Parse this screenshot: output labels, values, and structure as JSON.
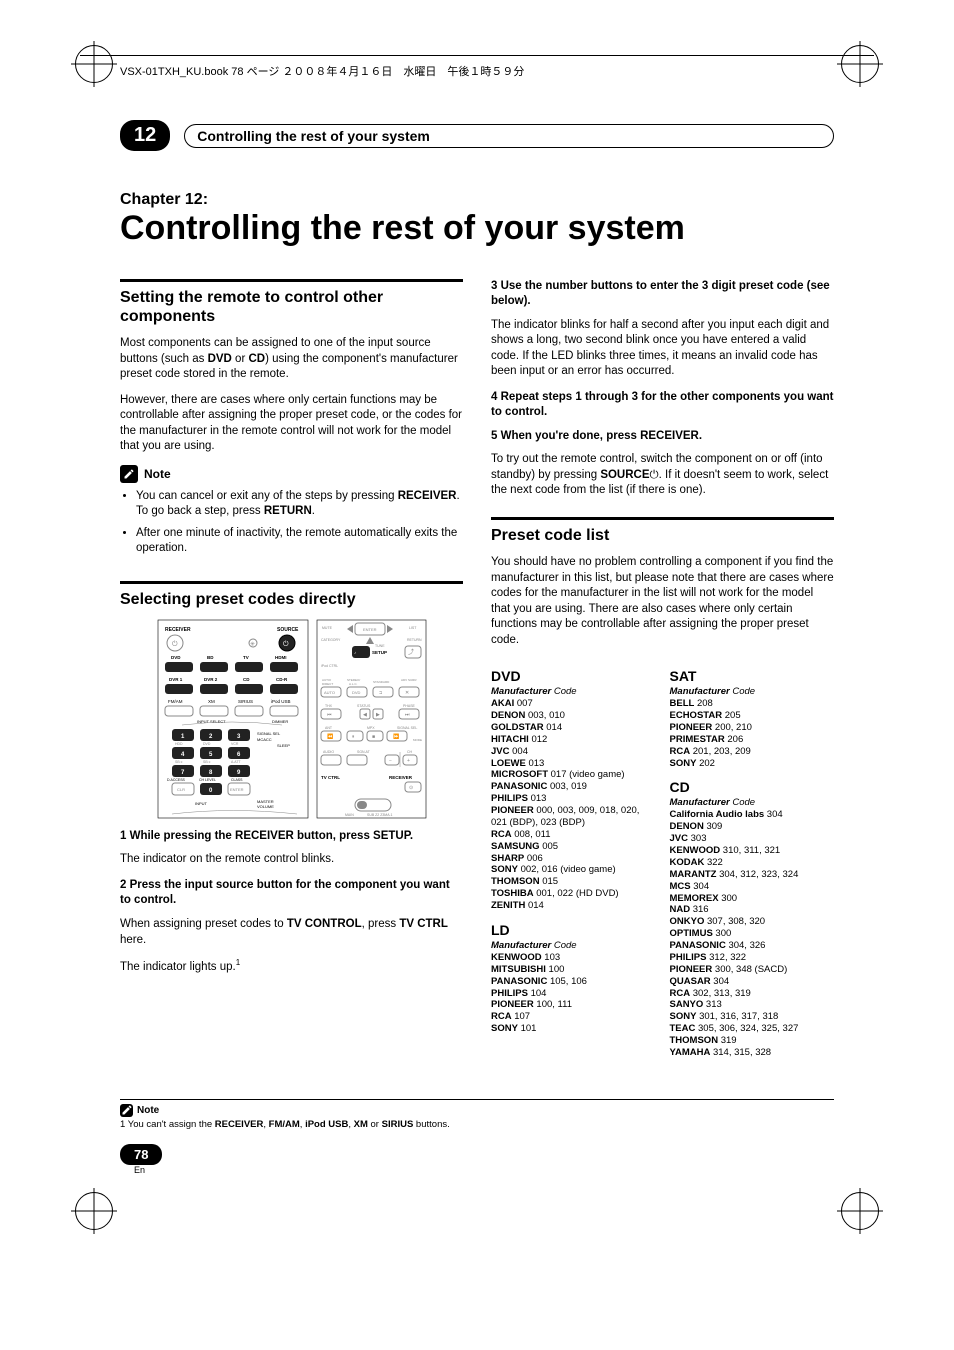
{
  "header": {
    "book_line": "VSX-01TXH_KU.book  78 ページ  ２００８年４月１６日　水曜日　午後１時５９分"
  },
  "chapter": {
    "badge": "12",
    "bar_title": "Controlling the rest of your system",
    "label": "Chapter 12:",
    "title": "Controlling the rest of your system"
  },
  "left": {
    "sec1_title": "Setting the remote to control other components",
    "sec1_p1": "Most components can be assigned to one of the input source buttons (such as DVD or CD) using the component's manufacturer preset code stored in the remote.",
    "sec1_p2": "However, there are cases where only certain functions may be controllable after assigning the proper preset code, or the codes for the manufacturer in the remote control will not work for the model that you are using.",
    "note_label": "Note",
    "note_items": [
      "You can cancel or exit any of the steps by pressing RECEIVER. To go back a step, press RETURN.",
      "After one minute of inactivity, the remote automatically exits the operation."
    ],
    "sec2_title": "Selecting preset codes directly",
    "step1_bold": "1    While pressing the RECEIVER button, press SETUP.",
    "step1_text": "The indicator on the remote control blinks.",
    "step2_bold": "2    Press the input source button for the component you want to control.",
    "step2_text": "When assigning preset codes to TV CONTROL, press TV CTRL here.",
    "step2_text2": "The indicator lights up."
  },
  "right": {
    "step3_bold": "3    Use the number buttons to enter the 3 digit preset code (see below).",
    "step3_text": "The indicator blinks for half a second after you input each digit and shows a long, two second blink once you have entered a valid code. If the LED blinks three times, it means an invalid code has been input or an error has occurred.",
    "step4_bold": "4    Repeat steps 1 through 3 for the other components you want to control.",
    "step5_bold": "5    When you're done, press RECEIVER.",
    "step5_text": "To try out the remote control, switch the component on or off (into standby) by pressing SOURCE⏻. If it doesn't seem to work, select the next code from the list (if there is one).",
    "sec3_title": "Preset code list",
    "sec3_p1": "You should have no problem controlling a component if you find the manufacturer in this list, but please note that there are cases where codes for the manufacturer in the list will not work for the model that you are using. There are also cases where only certain functions may be controllable after assigning the proper preset code.",
    "mfr_label": "Manufacturer",
    "code_label": "Code",
    "dvd": {
      "title": "DVD",
      "items": [
        [
          "AKAI",
          "007"
        ],
        [
          "DENON",
          "003, 010"
        ],
        [
          "GOLDSTAR",
          "014"
        ],
        [
          "HITACHI",
          "012"
        ],
        [
          "JVC",
          "004"
        ],
        [
          "LOEWE",
          "013"
        ],
        [
          "MICROSOFT",
          "017 (video game)"
        ],
        [
          "PANASONIC",
          "003, 019"
        ],
        [
          "PHILIPS",
          "013"
        ],
        [
          "PIONEER",
          "000, 003, 009, 018, 020, 021 (BDP), 023 (BDP)"
        ],
        [
          "RCA",
          "008, 011"
        ],
        [
          "SAMSUNG",
          "005"
        ],
        [
          "SHARP",
          "006"
        ],
        [
          "SONY",
          "002, 016 (video game)"
        ],
        [
          "THOMSON",
          "015"
        ],
        [
          "TOSHIBA",
          "001, 022 (HD DVD)"
        ],
        [
          "ZENITH",
          "014"
        ]
      ]
    },
    "ld": {
      "title": "LD",
      "items": [
        [
          "KENWOOD",
          "103"
        ],
        [
          "MITSUBISHI",
          "100"
        ],
        [
          "PANASONIC",
          "105, 106"
        ],
        [
          "PHILIPS",
          "104"
        ],
        [
          "PIONEER",
          "100, 111"
        ],
        [
          "RCA",
          "107"
        ],
        [
          "SONY",
          "101"
        ]
      ]
    },
    "sat": {
      "title": "SAT",
      "items": [
        [
          "BELL",
          "208"
        ],
        [
          "ECHOSTAR",
          "205"
        ],
        [
          "PIONEER",
          "200, 210"
        ],
        [
          "PRIMESTAR",
          "206"
        ],
        [
          "RCA",
          "201, 203, 209"
        ],
        [
          "SONY",
          "202"
        ]
      ]
    },
    "cd": {
      "title": "CD",
      "items": [
        [
          "California Audio labs",
          "304"
        ],
        [
          "DENON",
          "309"
        ],
        [
          "JVC",
          "303"
        ],
        [
          "KENWOOD",
          "310, 311, 321"
        ],
        [
          "KODAK",
          "322"
        ],
        [
          "MARANTZ",
          "304, 312, 323, 324"
        ],
        [
          "MCS",
          "304"
        ],
        [
          "MEMOREX",
          "300"
        ],
        [
          "NAD",
          "316"
        ],
        [
          "ONKYO",
          "307, 308, 320"
        ],
        [
          "OPTIMUS",
          "300"
        ],
        [
          "PANASONIC",
          "304, 326"
        ],
        [
          "PHILIPS",
          "312, 322"
        ],
        [
          "PIONEER",
          "300, 348 (SACD)"
        ],
        [
          "QUASAR",
          "304"
        ],
        [
          "RCA",
          "302, 313, 319"
        ],
        [
          "SANYO",
          "313"
        ],
        [
          "SONY",
          "301, 316, 317, 318"
        ],
        [
          "TEAC",
          "305, 306, 324, 325, 327"
        ],
        [
          "THOMSON",
          "319"
        ],
        [
          "YAMAHA",
          "314, 315, 328"
        ]
      ]
    }
  },
  "footer": {
    "note_label": "Note",
    "footnote": "1 You can't assign the RECEIVER, FM/AM, iPod USB, XM or SIRIUS buttons.",
    "page_num": "78",
    "lang": "En"
  },
  "remote": {
    "receiver": "RECEIVER",
    "source": "SOURCE",
    "row1": [
      "DVD",
      "BD",
      "TV",
      "HDMI"
    ],
    "row2": [
      "DVR 1",
      "DVR 2",
      "CD",
      "CD-R"
    ],
    "row3": [
      "FM/AM",
      "XM",
      "SIRIUS",
      "iPod USB"
    ],
    "input_select": "INPUT SELECT",
    "dimmer": "DIMMER",
    "nums": [
      "1",
      "2",
      "3",
      "4",
      "5",
      "6",
      "7",
      "8",
      "9",
      "0"
    ],
    "signal": "SIGNAL SEL",
    "mcacc": "MCACC",
    "sleep": "SLEEP",
    "hdd": "HDD",
    "dvd": "DVD",
    "vcr": "VCR",
    "sbr": "SB ch",
    "art": "A.ATT",
    "dacc": "D.ACCESS",
    "chlvl": "CH LEVEL",
    "class": "CLASS",
    "clr": "CLR",
    "enter": "ENTER",
    "input": "INPUT",
    "master": "MASTER VOLUME",
    "right_labels": {
      "mute": "MUTE",
      "tune": "TUNE",
      "setup": "SETUP",
      "return": "RETURN",
      "ipod": "iPod CTRL",
      "category": "CATEGORY",
      "list": "LIST",
      "enter": "ENTER",
      "auto": "AUTO/DIRECT",
      "stereo": "STEREO/A.L.C.",
      "standard": "STANDARD",
      "advsurr": "ADV SURR",
      "thx": "THX",
      "status": "STATUS",
      "phase": "PHASE",
      "ant": "ANT",
      "mpx": "MPX",
      "signal": "SIGNAL SEL",
      "audio": "AUDIO",
      "signal2": "SGN.AT",
      "ch": "CH",
      "tvctrl": "TV CTRL",
      "receiver": "RECEIVER",
      "main": "MAIN",
      "z2": "SUB Z2",
      "z3": "Z3"
    }
  }
}
